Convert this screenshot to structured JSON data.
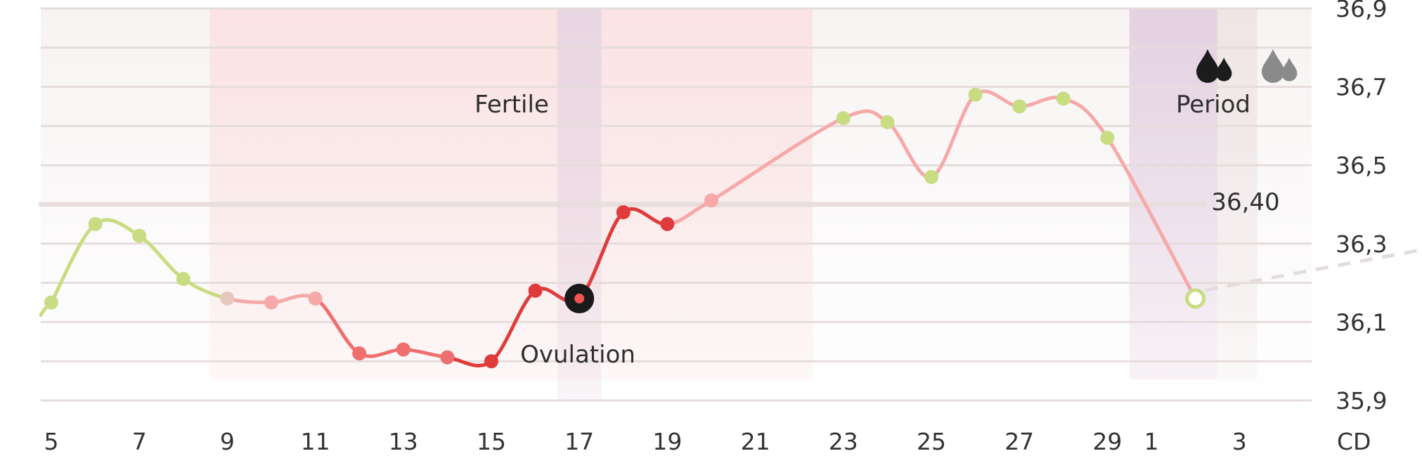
{
  "chart_data": {
    "type": "line",
    "x_unit_label": "CD",
    "x_tick_labels": [
      "5",
      "7",
      "9",
      "11",
      "13",
      "15",
      "17",
      "19",
      "21",
      "23",
      "25",
      "27",
      "29",
      "1",
      "3"
    ],
    "y_tick_labels": [
      "36,9",
      "36,7",
      "36,5",
      "36,3",
      "36,1",
      "35,9"
    ],
    "ylim": [
      35.9,
      36.9
    ],
    "grid": true,
    "reference_line": {
      "value": 36.4,
      "label": "36,40"
    },
    "zones": [
      {
        "name": "fertile",
        "label": "Fertile",
        "from_day": 9,
        "to_day": 22
      },
      {
        "name": "ovulation",
        "label": "Ovulation",
        "from_day": 17,
        "to_day": 17
      },
      {
        "name": "period",
        "label": "Period",
        "from_day": 1,
        "to_day": 3
      }
    ],
    "series": [
      {
        "points": [
          {
            "x": "5",
            "y": 36.15
          },
          {
            "x": "6",
            "y": 36.35
          },
          {
            "x": "7",
            "y": 36.32
          },
          {
            "x": "8",
            "y": 36.21
          },
          {
            "x": "9",
            "y": 36.16
          },
          {
            "x": "10",
            "y": 36.15
          },
          {
            "x": "11",
            "y": 36.16
          },
          {
            "x": "12",
            "y": 36.02
          },
          {
            "x": "13",
            "y": 36.03
          },
          {
            "x": "14",
            "y": 36.01
          },
          {
            "x": "15",
            "y": 36.0
          },
          {
            "x": "16",
            "y": 36.18
          },
          {
            "x": "17",
            "y": 36.16
          },
          {
            "x": "18",
            "y": 36.38
          },
          {
            "x": "19",
            "y": 36.35
          },
          {
            "x": "20",
            "y": 36.41
          },
          {
            "x": "23",
            "y": 36.62
          },
          {
            "x": "24",
            "y": 36.61
          },
          {
            "x": "25",
            "y": 36.47
          },
          {
            "x": "26",
            "y": 36.68
          },
          {
            "x": "27",
            "y": 36.65
          },
          {
            "x": "28",
            "y": 36.67
          },
          {
            "x": "29",
            "y": 36.57
          },
          {
            "x": "2",
            "y": 36.16
          }
        ]
      }
    ],
    "colors": {
      "infertile": "#c8dc82",
      "fertile_low": "#f7a8a8",
      "fertile_high": "#e03b3b",
      "ovulation_marker": "#1a1a1a",
      "fertile_band": "#fbe3e3",
      "ovulation_band": "#e8d6e2",
      "period_band": "#e4d1e2",
      "period_band_next": "#efe5e5",
      "grid": "#e6dcdc",
      "reference_line": "#e8dede"
    },
    "period_icons": [
      "blood-drops-icon",
      "blood-drops-light-icon"
    ]
  }
}
